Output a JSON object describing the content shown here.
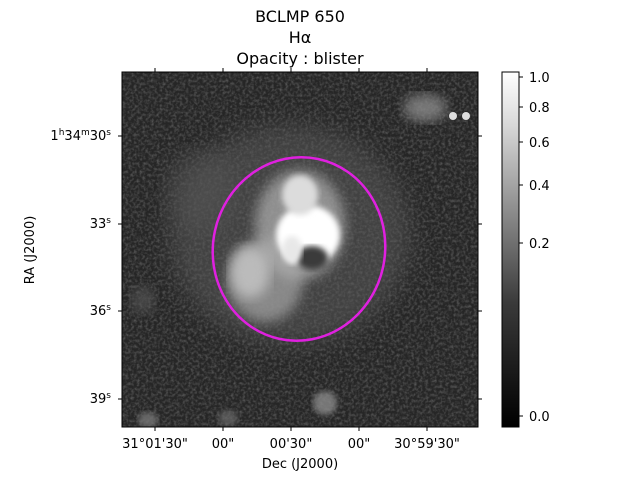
{
  "title": {
    "line1": "BCLMP 650",
    "line2": "Hα",
    "line3": "Opacity : blister"
  },
  "axes": {
    "xlabel": "Dec (J2000)",
    "ylabel": "RA (J2000)",
    "x_ticks": [
      "31°01'30\"",
      "00\"",
      "00'30\"",
      "00\"",
      "30°59'30\""
    ],
    "y_ticks": [
      {
        "main": "1",
        "sup1": "h",
        "mid": "34",
        "sup2": "m",
        "end": "30",
        "sup3": "s"
      },
      {
        "main": "33",
        "sup3": "s"
      },
      {
        "main": "36",
        "sup3": "s"
      },
      {
        "main": "39",
        "sup3": "s"
      }
    ]
  },
  "colorbar": {
    "tick_labels": [
      "1.0",
      "0.8",
      "0.6",
      "0.4",
      "0.2",
      "0.0"
    ],
    "tick_values": [
      1.0,
      0.8,
      0.6,
      0.4,
      0.2,
      0.0
    ],
    "colormap": "gray"
  },
  "overlay": {
    "shape": "ellipse",
    "color": "#e020e0"
  }
}
